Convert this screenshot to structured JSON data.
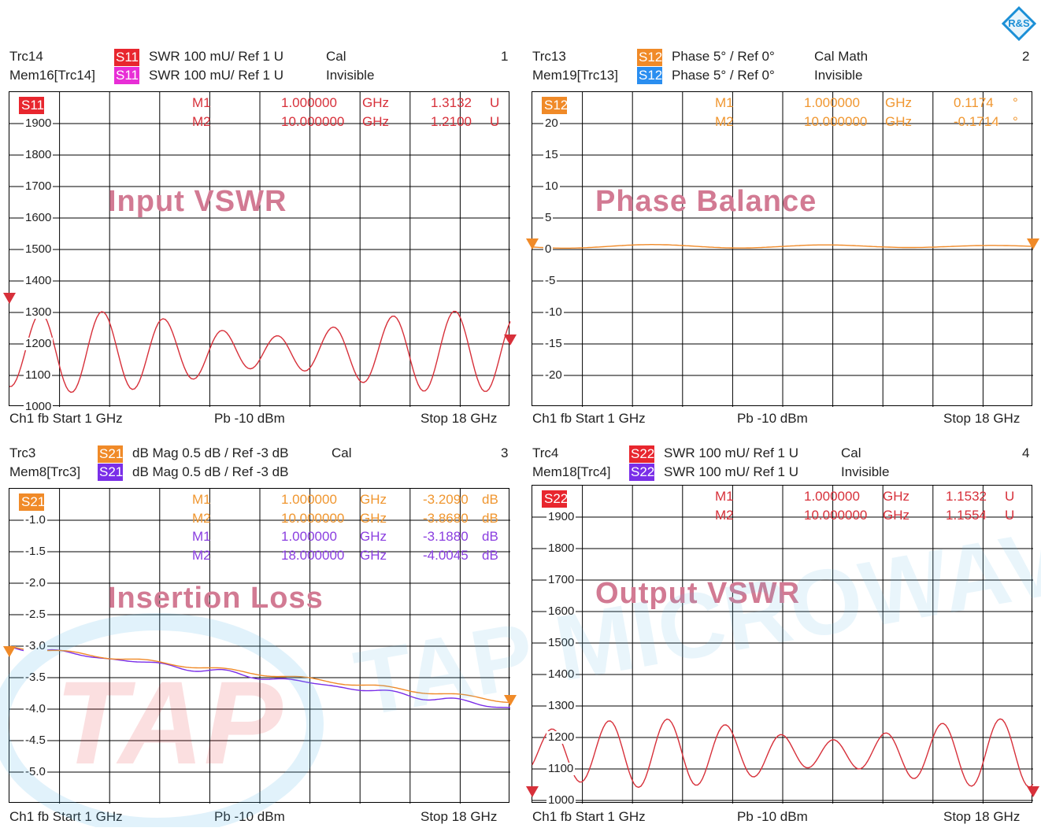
{
  "panels": [
    {
      "trc": "Trc14",
      "trc_color": "#e8262e",
      "mem": "Mem16[Trc14]",
      "mem_color": "#e82ed6",
      "trc_line": "SWR  100 mU/  Ref 1 U",
      "trc_state": "Cal",
      "mem_line": "SWR  100 mU/  Ref 1 U",
      "mem_state": "Invisible",
      "number": "1",
      "badge": "S11",
      "trc_tag": "S11",
      "mem_tag": "S11",
      "title": "Input VSWR",
      "ticks": [
        "1900",
        "1800",
        "1700",
        "1600",
        "1500",
        "1400",
        "1300",
        "1200",
        "1100",
        "1000"
      ],
      "markers": [
        {
          "name": "M1",
          "freq": "1.000000",
          "unit": "GHz",
          "val": "1.3132",
          "vu": "U",
          "color": "#d7303a"
        },
        {
          "name": "M2",
          "freq": "10.000000",
          "unit": "GHz",
          "val": "1.2100",
          "vu": "U",
          "color": "#d7303a"
        }
      ],
      "footer": {
        "left": "Ch1  fb  Start  1 GHz",
        "mid": "Pb  -10 dBm",
        "right": "Stop  18 GHz"
      },
      "trace_color": "#d7303a"
    },
    {
      "trc": "Trc13",
      "trc_color": "#f08a28",
      "mem": "Mem19[Trc13]",
      "mem_color": "#2a8ef0",
      "trc_line": "Phase  5° /  Ref 0°",
      "trc_state": "Cal Math",
      "mem_line": "Phase  5° /  Ref 0°",
      "mem_state": "Invisible",
      "number": "2",
      "badge": "S12",
      "trc_tag": "S12",
      "mem_tag": "S12",
      "title": "Phase Balance",
      "ticks": [
        "20",
        "15",
        "10",
        "5",
        "0",
        "-5",
        "-10",
        "-15",
        "-20"
      ],
      "markers": [
        {
          "name": "M1",
          "freq": "1.000000",
          "unit": "GHz",
          "val": "0.1174",
          "vu": "°",
          "color": "#f0962f"
        },
        {
          "name": "M2",
          "freq": "10.000000",
          "unit": "GHz",
          "val": "-0.1714",
          "vu": "°",
          "color": "#f0962f"
        }
      ],
      "footer": {
        "left": "Ch1  fb  Start  1 GHz",
        "mid": "Pb  -10 dBm",
        "right": "Stop  18 GHz"
      },
      "trace_color": "#f08a28"
    },
    {
      "trc": "Trc3",
      "trc_color": "#f08a28",
      "mem": "Mem8[Trc3]",
      "mem_color": "#7a2ee8",
      "trc_line": "dB Mag  0.5 dB /  Ref -3 dB",
      "trc_state": "Cal",
      "mem_line": "dB Mag  0.5 dB /  Ref -3 dB",
      "mem_state": "",
      "number": "3",
      "badge": "S21",
      "trc_tag": "S21",
      "mem_tag": "S21",
      "title": "Insertion Loss",
      "ticks": [
        "-1.0",
        "-1.5",
        "-2.0",
        "-2.5",
        "-3.0",
        "-3.5",
        "-4.0",
        "-4.5",
        "-5.0"
      ],
      "markers": [
        {
          "name": "M1",
          "freq": "1.000000",
          "unit": "GHz",
          "val": "-3.2090",
          "vu": "dB",
          "color": "#f0962f"
        },
        {
          "name": "M2",
          "freq": "10.000000",
          "unit": "GHz",
          "val": "-3.8680",
          "vu": "dB",
          "color": "#f0962f"
        },
        {
          "name": "M1",
          "freq": "1.000000",
          "unit": "GHz",
          "val": "-3.1880",
          "vu": "dB",
          "color": "#8a3ee0"
        },
        {
          "name": "M2",
          "freq": "18.000000",
          "unit": "GHz",
          "val": "-4.0045",
          "vu": "dB",
          "color": "#8a3ee0"
        }
      ],
      "footer": {
        "left": "Ch1  fb  Start  1 GHz",
        "mid": "Pb  -10 dBm",
        "right": "Stop  18 GHz"
      },
      "trace_color": "#f08a28"
    },
    {
      "trc": "Trc4",
      "trc_color": "#e8262e",
      "mem": "Mem18[Trc4]",
      "mem_color": "#7a2ee8",
      "trc_line": "SWR  100 mU/  Ref 1 U",
      "trc_state": "Cal",
      "mem_line": "SWR  100 mU/  Ref 1 U",
      "mem_state": "Invisible",
      "number": "4",
      "badge": "S22",
      "trc_tag": "S22",
      "mem_tag": "S22",
      "title": "Output VSWR",
      "ticks": [
        "1900",
        "1800",
        "1700",
        "1600",
        "1500",
        "1400",
        "1300",
        "1200",
        "1100",
        "1000"
      ],
      "markers": [
        {
          "name": "M1",
          "freq": "1.000000",
          "unit": "GHz",
          "val": "1.1532",
          "vu": "U",
          "color": "#d7303a"
        },
        {
          "name": "M2",
          "freq": "10.000000",
          "unit": "GHz",
          "val": "1.1554",
          "vu": "U",
          "color": "#d7303a"
        }
      ],
      "footer": {
        "left": "Ch1  fb  Start  1 GHz",
        "mid": "Pb  -10 dBm",
        "right": "Stop  18 GHz"
      },
      "trace_color": "#d7303a"
    }
  ],
  "watermark": {
    "logo_text": "TAP",
    "brand_text": "TAP MICROWAVE"
  },
  "colors": {
    "accent_red": "#d7303a",
    "accent_orange": "#f08a28",
    "accent_violet": "#7a2ee8",
    "accent_blue": "#2a8ef0",
    "title_pink": "#d27a93"
  }
}
